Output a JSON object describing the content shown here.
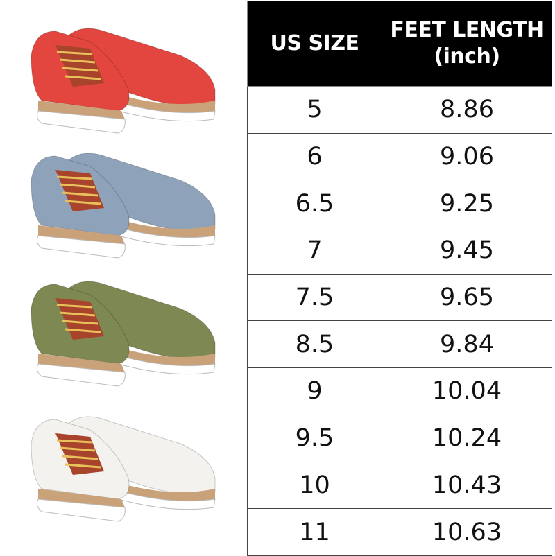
{
  "product_images": [
    {
      "color_name": "red",
      "color": "#e2463f"
    },
    {
      "color_name": "blue",
      "color": "#8ea3b9"
    },
    {
      "color_name": "green",
      "color": "#7e8853"
    },
    {
      "color_name": "white",
      "color": "#f3f2ef"
    }
  ],
  "size_table": {
    "headers": {
      "us_size": "US SIZE",
      "feet_length_line1": "FEET LENGTH",
      "feet_length_line2": "(inch)"
    },
    "rows": [
      {
        "size": "5",
        "length": "8.86"
      },
      {
        "size": "6",
        "length": "9.06"
      },
      {
        "size": "6.5",
        "length": "9.25"
      },
      {
        "size": "7",
        "length": "9.45"
      },
      {
        "size": "7.5",
        "length": "9.65"
      },
      {
        "size": "8.5",
        "length": "9.84"
      },
      {
        "size": "9",
        "length": "10.04"
      },
      {
        "size": "9.5",
        "length": "10.24"
      },
      {
        "size": "10",
        "length": "10.43"
      },
      {
        "size": "11",
        "length": "10.63"
      }
    ]
  }
}
